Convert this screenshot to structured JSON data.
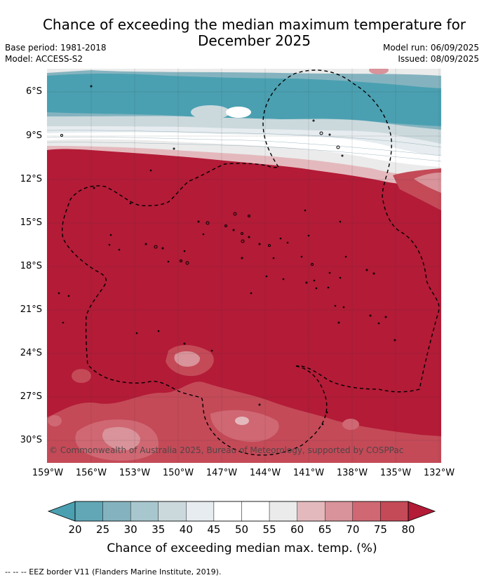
{
  "header": {
    "title_line1": "Chance of exceeding the median maximum temperature for",
    "title_line2": "December 2025",
    "base_period": "Base period: 1981-2018",
    "model": "Model: ACCESS-S2",
    "model_run": "Model run: 06/09/2025",
    "issued": "Issued: 08/09/2025"
  },
  "map": {
    "lat_labels": [
      "6°S",
      "9°S",
      "12°S",
      "15°S",
      "18°S",
      "21°S",
      "24°S",
      "27°S",
      "30°S"
    ],
    "lon_labels": [
      "159°W",
      "156°W",
      "153°W",
      "150°W",
      "147°W",
      "144°W",
      "141°W",
      "138°W",
      "135°W",
      "132°W"
    ],
    "copyright": "© Commonwealth of Australia 2025, Bureau of Meteorology, supported by COSPPac",
    "colors": {
      "c80": "#b31b37",
      "c75": "#c44a58",
      "c70": "#cf6873",
      "c65": "#d9939a",
      "c60": "#e4b9bd",
      "c55": "#ebebeb",
      "c50": "#ffffff",
      "c40": "#e6ecef",
      "c35": "#cbd9dd",
      "c30": "#a7c6cd",
      "c25": "#84b3bf",
      "c20": "#61a7b6",
      "c15": "#4aa0b1"
    }
  },
  "colorbar": {
    "ticks": [
      "20",
      "25",
      "30",
      "35",
      "40",
      "45",
      "50",
      "55",
      "60",
      "65",
      "70",
      "75",
      "80"
    ],
    "title": "Chance of exceeding median max. temp. (%)",
    "colors": [
      "#61a7b6",
      "#84b3bf",
      "#a7c6cd",
      "#cbd9dd",
      "#e6ecef",
      "#ffffff",
      "#ffffff",
      "#ebebeb",
      "#e4b9bd",
      "#d9939a",
      "#cf6873",
      "#c44a58"
    ],
    "low_color": "#4aa0b1",
    "high_color": "#b31b37"
  },
  "footer": {
    "legend": "--  --  -- EEZ border V11 (Flanders Marine Institute, 2019)."
  }
}
